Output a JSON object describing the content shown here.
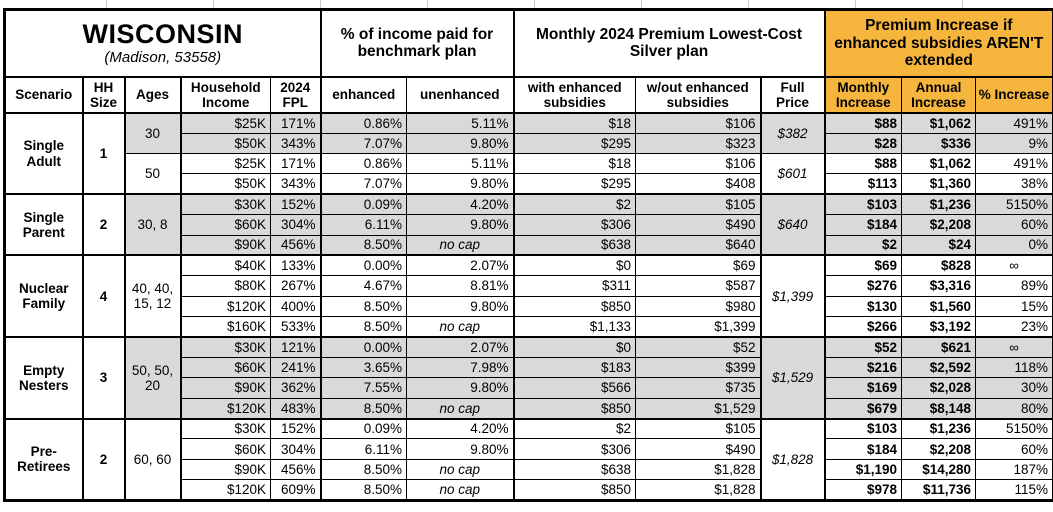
{
  "colors": {
    "accent_orange": "#F6B63D",
    "shade_gray": "#D9D9D9",
    "border_black": "#000000"
  },
  "chart_data": {
    "type": "table",
    "title": "WISCONSIN",
    "subtitle": "(Madison, 53558)",
    "column_groups": [
      "% of income paid for benchmark plan",
      "Monthly 2024 Premium Lowest-Cost Silver plan",
      "Premium Increase if enhanced subsidies AREN'T extended"
    ],
    "columns": [
      "Scenario",
      "HH Size",
      "Ages",
      "Household Income",
      "2024 FPL",
      "enhanced",
      "unenhanced",
      "with enhanced subsidies",
      "w/out enhanced subsidies",
      "Full Price",
      "Monthly Increase",
      "Annual Increase",
      "% Increase"
    ],
    "groups": [
      {
        "scenario": "Single Adult",
        "hh_size": "1",
        "blocks": [
          {
            "ages": "30",
            "shade": true,
            "full_price": "$382",
            "rows": [
              {
                "income": "$25K",
                "fpl": "171%",
                "enhanced": "0.86%",
                "unenhanced": "5.11%",
                "with_sub": "$18",
                "wout_sub": "$106",
                "monthly": "$88",
                "annual": "$1,062",
                "pct": "491%"
              },
              {
                "income": "$50K",
                "fpl": "343%",
                "enhanced": "7.07%",
                "unenhanced": "9.80%",
                "with_sub": "$295",
                "wout_sub": "$323",
                "monthly": "$28",
                "annual": "$336",
                "pct": "9%"
              }
            ]
          },
          {
            "ages": "50",
            "shade": false,
            "full_price": "$601",
            "rows": [
              {
                "income": "$25K",
                "fpl": "171%",
                "enhanced": "0.86%",
                "unenhanced": "5.11%",
                "with_sub": "$18",
                "wout_sub": "$106",
                "monthly": "$88",
                "annual": "$1,062",
                "pct": "491%"
              },
              {
                "income": "$50K",
                "fpl": "343%",
                "enhanced": "7.07%",
                "unenhanced": "9.80%",
                "with_sub": "$295",
                "wout_sub": "$408",
                "monthly": "$113",
                "annual": "$1,360",
                "pct": "38%"
              }
            ]
          }
        ]
      },
      {
        "scenario": "Single Parent",
        "hh_size": "2",
        "blocks": [
          {
            "ages": "30, 8",
            "shade": true,
            "full_price": "$640",
            "rows": [
              {
                "income": "$30K",
                "fpl": "152%",
                "enhanced": "0.09%",
                "unenhanced": "4.20%",
                "with_sub": "$2",
                "wout_sub": "$105",
                "monthly": "$103",
                "annual": "$1,236",
                "pct": "5150%"
              },
              {
                "income": "$60K",
                "fpl": "304%",
                "enhanced": "6.11%",
                "unenhanced": "9.80%",
                "with_sub": "$306",
                "wout_sub": "$490",
                "monthly": "$184",
                "annual": "$2,208",
                "pct": "60%"
              },
              {
                "income": "$90K",
                "fpl": "456%",
                "enhanced": "8.50%",
                "unenhanced": "no cap",
                "with_sub": "$638",
                "wout_sub": "$640",
                "monthly": "$2",
                "annual": "$24",
                "pct": "0%"
              }
            ]
          }
        ]
      },
      {
        "scenario": "Nuclear Family",
        "hh_size": "4",
        "blocks": [
          {
            "ages": "40, 40, 15, 12",
            "shade": false,
            "full_price": "$1,399",
            "rows": [
              {
                "income": "$40K",
                "fpl": "133%",
                "enhanced": "0.00%",
                "unenhanced": "2.07%",
                "with_sub": "$0",
                "wout_sub": "$69",
                "monthly": "$69",
                "annual": "$828",
                "pct": "∞"
              },
              {
                "income": "$80K",
                "fpl": "267%",
                "enhanced": "4.67%",
                "unenhanced": "8.81%",
                "with_sub": "$311",
                "wout_sub": "$587",
                "monthly": "$276",
                "annual": "$3,316",
                "pct": "89%"
              },
              {
                "income": "$120K",
                "fpl": "400%",
                "enhanced": "8.50%",
                "unenhanced": "9.80%",
                "with_sub": "$850",
                "wout_sub": "$980",
                "monthly": "$130",
                "annual": "$1,560",
                "pct": "15%"
              },
              {
                "income": "$160K",
                "fpl": "533%",
                "enhanced": "8.50%",
                "unenhanced": "no cap",
                "with_sub": "$1,133",
                "wout_sub": "$1,399",
                "monthly": "$266",
                "annual": "$3,192",
                "pct": "23%"
              }
            ]
          }
        ]
      },
      {
        "scenario": "Empty Nesters",
        "hh_size": "3",
        "blocks": [
          {
            "ages": "50, 50, 20",
            "shade": true,
            "full_price": "$1,529",
            "rows": [
              {
                "income": "$30K",
                "fpl": "121%",
                "enhanced": "0.00%",
                "unenhanced": "2.07%",
                "with_sub": "$0",
                "wout_sub": "$52",
                "monthly": "$52",
                "annual": "$621",
                "pct": "∞"
              },
              {
                "income": "$60K",
                "fpl": "241%",
                "enhanced": "3.65%",
                "unenhanced": "7.98%",
                "with_sub": "$183",
                "wout_sub": "$399",
                "monthly": "$216",
                "annual": "$2,592",
                "pct": "118%"
              },
              {
                "income": "$90K",
                "fpl": "362%",
                "enhanced": "7.55%",
                "unenhanced": "9.80%",
                "with_sub": "$566",
                "wout_sub": "$735",
                "monthly": "$169",
                "annual": "$2,028",
                "pct": "30%"
              },
              {
                "income": "$120K",
                "fpl": "483%",
                "enhanced": "8.50%",
                "unenhanced": "no cap",
                "with_sub": "$850",
                "wout_sub": "$1,529",
                "monthly": "$679",
                "annual": "$8,148",
                "pct": "80%"
              }
            ]
          }
        ]
      },
      {
        "scenario": "Pre-Retirees",
        "hh_size": "2",
        "blocks": [
          {
            "ages": "60, 60",
            "shade": false,
            "full_price": "$1,828",
            "rows": [
              {
                "income": "$30K",
                "fpl": "152%",
                "enhanced": "0.09%",
                "unenhanced": "4.20%",
                "with_sub": "$2",
                "wout_sub": "$105",
                "monthly": "$103",
                "annual": "$1,236",
                "pct": "5150%"
              },
              {
                "income": "$60K",
                "fpl": "304%",
                "enhanced": "6.11%",
                "unenhanced": "9.80%",
                "with_sub": "$306",
                "wout_sub": "$490",
                "monthly": "$184",
                "annual": "$2,208",
                "pct": "60%"
              },
              {
                "income": "$90K",
                "fpl": "456%",
                "enhanced": "8.50%",
                "unenhanced": "no cap",
                "with_sub": "$638",
                "wout_sub": "$1,828",
                "monthly": "$1,190",
                "annual": "$14,280",
                "pct": "187%"
              },
              {
                "income": "$120K",
                "fpl": "609%",
                "enhanced": "8.50%",
                "unenhanced": "no cap",
                "with_sub": "$850",
                "wout_sub": "$1,828",
                "monthly": "$978",
                "annual": "$11,736",
                "pct": "115%"
              }
            ]
          }
        ]
      }
    ]
  }
}
